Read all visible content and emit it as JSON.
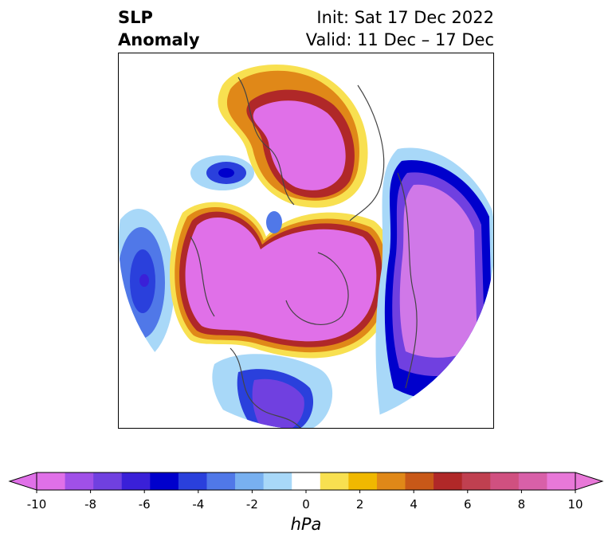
{
  "title": {
    "left": "SLP\nAnomaly",
    "right_line1": "Init: Sat 17 Dec 2022",
    "right_line2": "Valid: 11 Dec – 17 Dec"
  },
  "colorbar": {
    "unit": "hPa",
    "ticks": [
      "-10",
      "-8",
      "-6",
      "-4",
      "-2",
      "0",
      "2",
      "4",
      "6",
      "8",
      "10"
    ],
    "colors": [
      "#e070e8",
      "#a050e8",
      "#7040e0",
      "#3a20d8",
      "#0000cc",
      "#2a40dc",
      "#5078e8",
      "#78b0f0",
      "#a8d8f8",
      "#ffffff",
      "#f8e050",
      "#f0b800",
      "#e08818",
      "#c85818",
      "#b02828",
      "#c04050",
      "#d05080",
      "#d860a8",
      "#e878d8"
    ]
  }
}
